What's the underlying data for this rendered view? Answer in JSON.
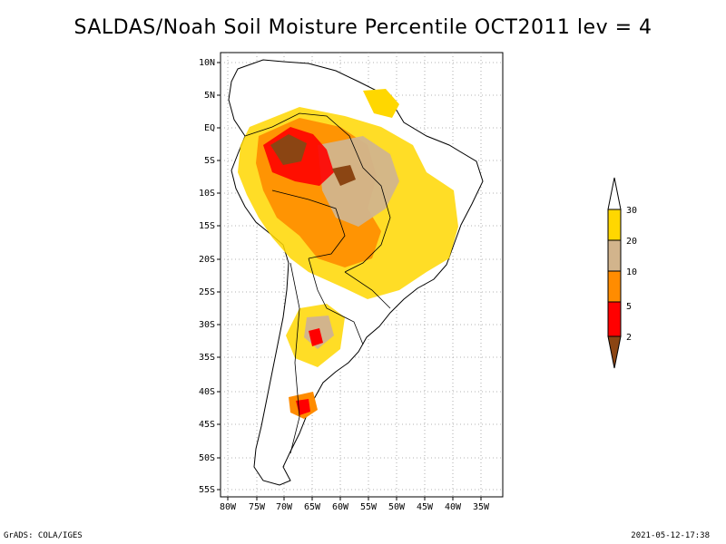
{
  "title": "SALDAS/Noah Soil Moisture Percentile OCT2011 lev = 4",
  "lat_labels": [
    "10N",
    "5N",
    "EQ",
    "5S",
    "10S",
    "15S",
    "20S",
    "25S",
    "30S",
    "35S",
    "40S",
    "45S",
    "50S",
    "55S"
  ],
  "lon_labels": [
    "80W",
    "75W",
    "70W",
    "65W",
    "60W",
    "55W",
    "50W",
    "45W",
    "40W",
    "35W"
  ],
  "legend": {
    "labels": [
      "2",
      "5",
      "10",
      "20",
      "30"
    ],
    "colors": {
      "lt2": "#8b4513",
      "p2_5": "#ff0000",
      "p5_10": "#ff8c00",
      "p10_20": "#d2b48c",
      "p20_30": "#ffd700",
      "gt30": "#ffffff"
    }
  },
  "footer": {
    "left": "GrADS: COLA/IGES",
    "right": "2021-05-12-17:38"
  }
}
